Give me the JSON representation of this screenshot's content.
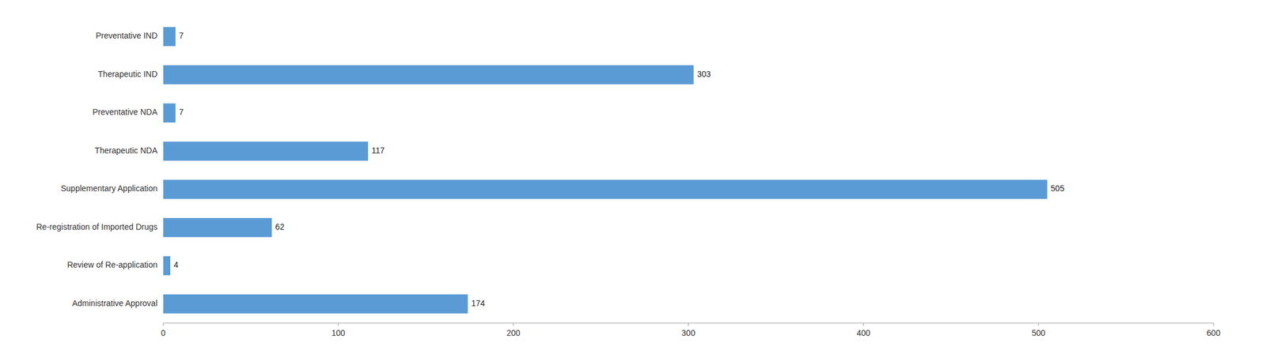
{
  "chart_data": {
    "type": "bar",
    "orientation": "horizontal",
    "categories": [
      "Administrative Approval",
      "Review of Re-application",
      "Re-registration of Imported Drugs",
      "Supplementary Application",
      "Therapeutic NDA",
      "Preventative NDA",
      "Therapeutic IND",
      "Preventative IND"
    ],
    "values": [
      174,
      4,
      62,
      505,
      117,
      7,
      303,
      7
    ],
    "color": "#5B9BD5",
    "xlim": [
      0,
      600
    ],
    "xticks": [
      0,
      100,
      200,
      300,
      400,
      500,
      600
    ],
    "grid": false,
    "data_labels": true
  }
}
